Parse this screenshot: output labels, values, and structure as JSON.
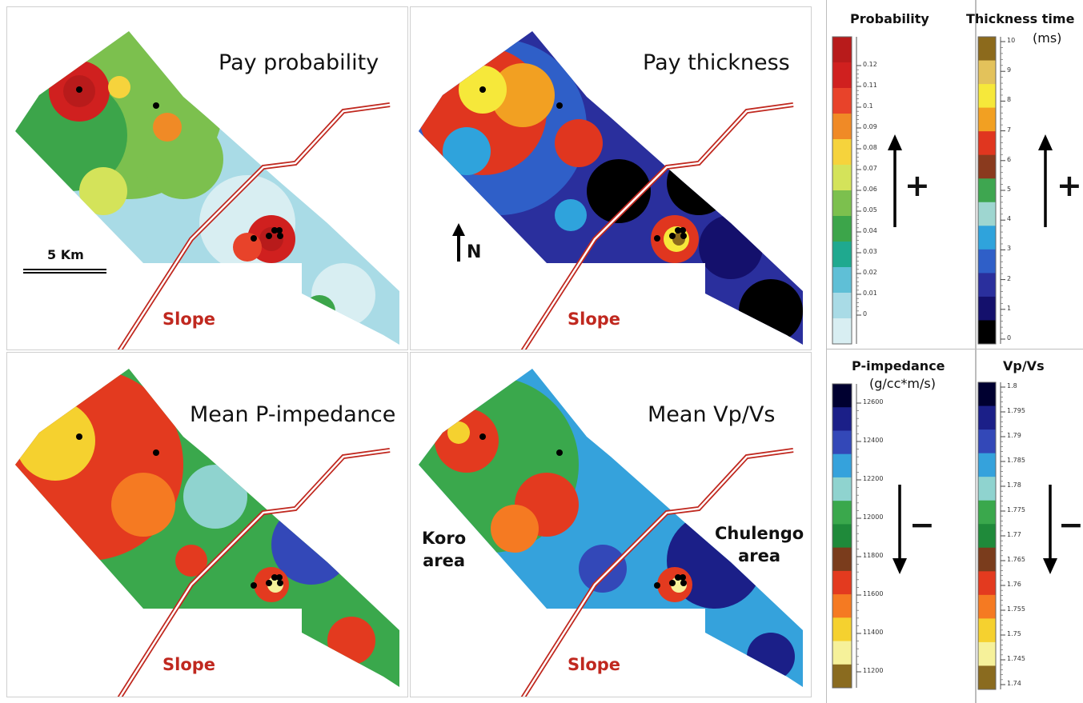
{
  "panels": {
    "top_left_title": "Pay probability",
    "top_right_title": "Pay thickness",
    "bottom_left_title": "Mean P-impedance",
    "bottom_right_title": "Mean Vp/Vs",
    "slope_label": "Slope",
    "scale_bar_label": "5 Km",
    "north_label": "N",
    "koro_area_line1": "Koro",
    "koro_area_line2": "area",
    "chulengo_area_line1": "Chulengo",
    "chulengo_area_line2": "area"
  },
  "colorbars": {
    "probability": {
      "title": "Probability",
      "sign": "+",
      "ticks": [
        "0.12",
        "0.11",
        "0.1",
        "0.09",
        "0.08",
        "0.07",
        "0.06",
        "0.05",
        "0.04",
        "0.03",
        "0.02",
        "0.01",
        "0"
      ]
    },
    "thickness": {
      "title": "Thickness time",
      "unit": "(ms)",
      "sign": "+",
      "ticks": [
        "10",
        "9",
        "8",
        "7",
        "6",
        "5",
        "4",
        "3",
        "2",
        "1",
        "0"
      ]
    },
    "p_impedance": {
      "title": "P-impedance",
      "unit": "(g/cc*m/s)",
      "sign": "−",
      "ticks": [
        "12600",
        "12400",
        "12200",
        "12000",
        "11800",
        "11600",
        "11400",
        "11200"
      ]
    },
    "vpvs": {
      "title": "Vp/Vs",
      "sign": "−",
      "ticks": [
        "1.8",
        "1.795",
        "1.79",
        "1.785",
        "1.78",
        "1.775",
        "1.77",
        "1.765",
        "1.76",
        "1.755",
        "1.75",
        "1.745",
        "1.74"
      ]
    }
  },
  "colors": {
    "slope_line": "#c0281f",
    "probability_scale": [
      "#d8eef2",
      "#a9dbe6",
      "#5fbfd6",
      "#1fa98f",
      "#3ca54a",
      "#7cc04e",
      "#d4e35a",
      "#f6d33c",
      "#f08a26",
      "#e8432a",
      "#d0201f",
      "#b81b1b"
    ],
    "thickness_scale": [
      "#000000",
      "#14106c",
      "#2a2f9d",
      "#2f5fc8",
      "#2fa3dc",
      "#9ed6d0",
      "#3ea650",
      "#8a3a1e",
      "#e0361f",
      "#f2a022",
      "#f6e83a",
      "#e3c25b",
      "#8c6a1c"
    ],
    "impedance_scale": [
      "#000030",
      "#1b1f88",
      "#3348b8",
      "#35a2dc",
      "#8fd3cf",
      "#3aa84c",
      "#1f8a3a",
      "#7a3c1c",
      "#e33a1f",
      "#f57a22",
      "#f5d12f",
      "#f6f19a",
      "#8a6b1f"
    ]
  }
}
